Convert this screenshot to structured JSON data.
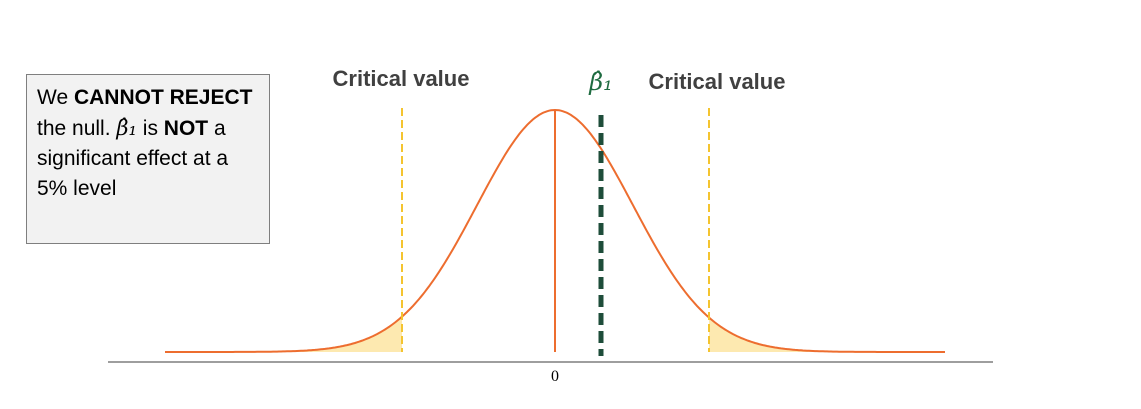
{
  "box": {
    "parts": [
      "We ",
      "CANNOT REJECT",
      " the null. ",
      "β̂₁",
      " is ",
      "NOT",
      " a significant effect at a 5% level"
    ]
  },
  "labels": {
    "critical_left": "Critical value",
    "critical_right": "Critical value",
    "beta_hat": "β̂₁",
    "zero": "0"
  }
}
